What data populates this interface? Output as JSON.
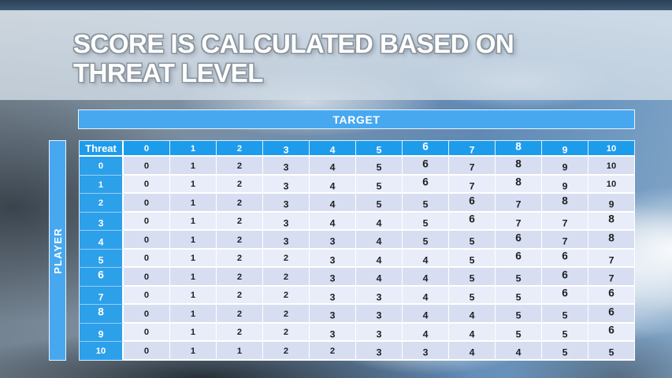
{
  "title_band": {
    "title": "SCORE IS CALCULATED BASED ON THREAT LEVEL"
  },
  "chart_data": {
    "type": "table",
    "title": "SCORE IS CALCULATED BASED ON THREAT LEVEL",
    "x_axis_label": "TARGET",
    "y_axis_label": "PLAYER",
    "corner_label": "Threat",
    "columns": [
      "0",
      "1",
      "2",
      "3",
      "4",
      "5",
      "6",
      "7",
      "8",
      "9",
      "10"
    ],
    "row_headers": [
      "0",
      "1",
      "2",
      "3",
      "4",
      "5",
      "6",
      "7",
      "8",
      "9",
      "10"
    ],
    "matrix": [
      [
        0,
        1,
        2,
        3,
        4,
        5,
        6,
        7,
        8,
        9,
        10
      ],
      [
        0,
        1,
        2,
        3,
        4,
        5,
        6,
        7,
        8,
        9,
        10
      ],
      [
        0,
        1,
        2,
        3,
        4,
        5,
        5,
        6,
        7,
        8,
        9
      ],
      [
        0,
        1,
        2,
        3,
        4,
        4,
        5,
        6,
        7,
        7,
        8
      ],
      [
        0,
        1,
        2,
        3,
        3,
        4,
        5,
        5,
        6,
        7,
        8
      ],
      [
        0,
        1,
        2,
        2,
        3,
        4,
        4,
        5,
        6,
        6,
        7
      ],
      [
        0,
        1,
        2,
        2,
        3,
        4,
        4,
        5,
        5,
        6,
        7
      ],
      [
        0,
        1,
        2,
        2,
        3,
        3,
        4,
        5,
        5,
        6,
        6
      ],
      [
        0,
        1,
        2,
        2,
        3,
        3,
        4,
        4,
        5,
        5,
        6
      ],
      [
        0,
        1,
        2,
        2,
        3,
        3,
        4,
        4,
        5,
        5,
        6
      ],
      [
        0,
        1,
        1,
        2,
        2,
        3,
        3,
        4,
        4,
        5,
        5
      ]
    ],
    "layout": {
      "row_striping": true,
      "header_position": "top-and-left"
    }
  },
  "colors": {
    "band_blue": "#47a8f0",
    "header_blue": "#1e9cec",
    "rowheader_blue": "#2da0ea",
    "row_dark": "#d8def2",
    "row_light": "#e9edf9",
    "cell_text": "#1d1f21"
  }
}
